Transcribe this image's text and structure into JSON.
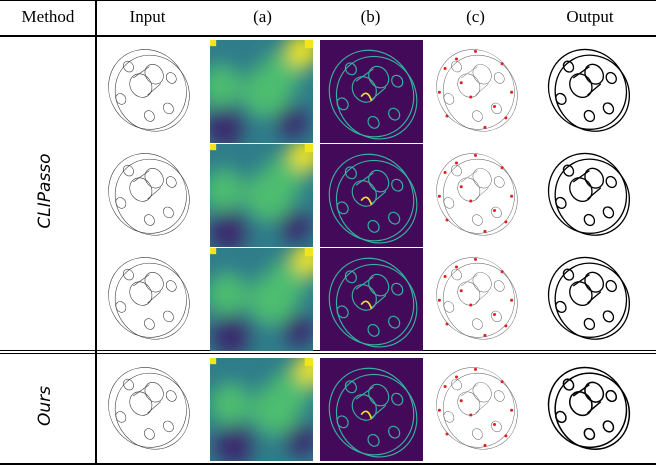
{
  "headers": {
    "method": "Method",
    "input": "Input",
    "a": "(a)",
    "b": "(b)",
    "c": "(c)",
    "output": "Output"
  },
  "row_groups": [
    {
      "label": "CLIPasso"
    },
    {
      "label": "Ours"
    }
  ],
  "colors": {
    "heatmap_dark": "#3b2a6e",
    "heatmap_mid": "#2f7d8a",
    "heatmap_bright": "#4dbd70",
    "heatmap_hot": "#f2e51d",
    "attention_bg": "#440a5a",
    "attention_line": "#35b2a0",
    "point_red": "#e02020"
  }
}
